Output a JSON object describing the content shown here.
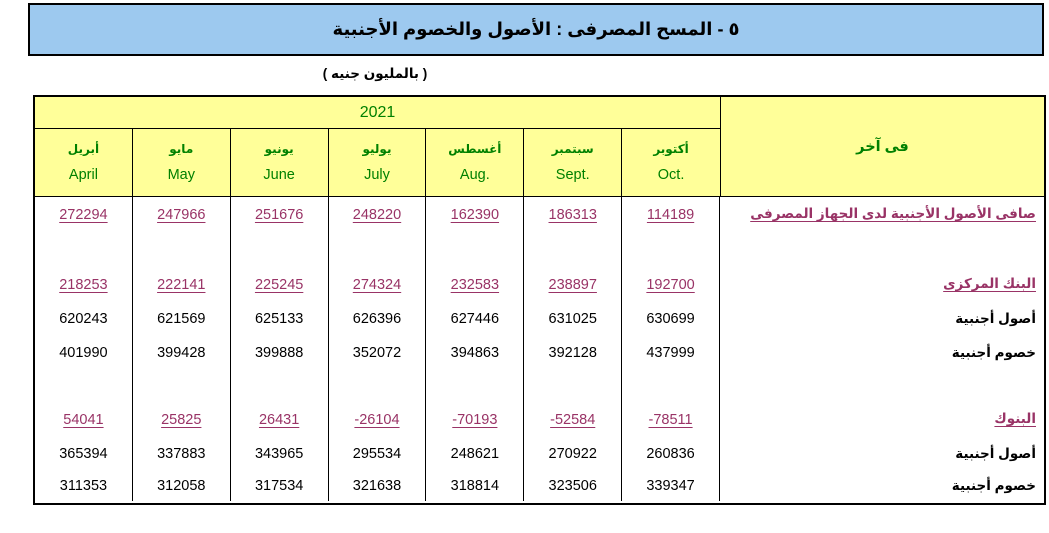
{
  "title": "٥ - المسح المصرفى :  الأصول والخصوم الأجنبية",
  "subtitle": "( بالمليون جنيه )",
  "table": {
    "year": "2021",
    "corner_label": "فى آخر",
    "months": [
      {
        "ar": "أبريل",
        "en": "April"
      },
      {
        "ar": "مايو",
        "en": "May"
      },
      {
        "ar": "يونيو",
        "en": "June"
      },
      {
        "ar": "يوليو",
        "en": "July"
      },
      {
        "ar": "أغسطس",
        "en": "Aug."
      },
      {
        "ar": "سبتمبر",
        "en": "Sept."
      },
      {
        "ar": "أكتوبر",
        "en": "Oct."
      }
    ],
    "rows": [
      {
        "label": "صافى الأصول الأجنبية لدى الجهاز المصرفى",
        "emphasis": true,
        "values": [
          "272294",
          "247966",
          "251676",
          "248220",
          "162390",
          "186313",
          "114189"
        ]
      },
      {
        "label": "البنك المركزى",
        "emphasis": true,
        "values": [
          "218253",
          "222141",
          "225245",
          "274324",
          "232583",
          "238897",
          "192700"
        ]
      },
      {
        "label": "أصول أجنبية",
        "emphasis": false,
        "values": [
          "620243",
          "621569",
          "625133",
          "626396",
          "627446",
          "631025",
          "630699"
        ]
      },
      {
        "label": "خصوم أجنبية",
        "emphasis": false,
        "values": [
          "401990",
          "399428",
          "399888",
          "352072",
          "394863",
          "392128",
          "437999"
        ]
      },
      {
        "label": "البنوك",
        "emphasis": true,
        "values": [
          "54041",
          "25825",
          "26431",
          "-26104",
          "-70193",
          "-52584",
          "-78511"
        ]
      },
      {
        "label": "أصول أجنبية",
        "emphasis": false,
        "values": [
          "365394",
          "337883",
          "343965",
          "295534",
          "248621",
          "270922",
          "260836"
        ]
      },
      {
        "label": "خصوم أجنبية",
        "emphasis": false,
        "values": [
          "311353",
          "312058",
          "317534",
          "321638",
          "318814",
          "323506",
          "339347"
        ]
      }
    ]
  },
  "colors": {
    "banner_bg": "#9DC9EF",
    "header_bg": "#FFFF99",
    "month_text": "#008000",
    "emphasis_text": "#993366",
    "body_text": "#000000"
  }
}
